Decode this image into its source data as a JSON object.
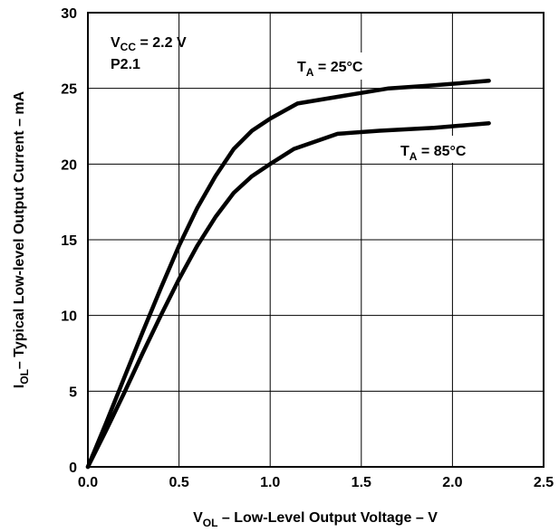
{
  "chart_data": {
    "type": "line",
    "xlabel": {
      "base": "V",
      "sub": "OL",
      "rest": " – Low-Level Output Voltage – V"
    },
    "ylabel": {
      "base": "I",
      "sub": "OL",
      "rest": "– Typical Low-level Output Current – mA"
    },
    "xlim": [
      0,
      2.5
    ],
    "ylim": [
      0,
      30
    ],
    "xticks": [
      "0.0",
      "0.5",
      "1.0",
      "1.5",
      "2.0",
      "2.5"
    ],
    "yticks": [
      "0",
      "5",
      "10",
      "15",
      "20",
      "25",
      "30"
    ],
    "grid": true,
    "annotations": {
      "vcc": {
        "base": "V",
        "sub": "CC",
        "rest": " = 2.2 V"
      },
      "port": "P2.1"
    },
    "series": [
      {
        "name": "TA = 25°C",
        "label": {
          "base": "T",
          "sub": "A",
          "rest": " = 25°C"
        },
        "x": [
          0.0,
          0.1,
          0.2,
          0.3,
          0.4,
          0.5,
          0.6,
          0.7,
          0.8,
          0.9,
          1.0,
          1.15,
          1.4,
          1.65,
          1.9,
          2.2
        ],
        "y": [
          0.0,
          2.9,
          5.9,
          8.9,
          11.8,
          14.6,
          17.1,
          19.2,
          21.0,
          22.2,
          23.0,
          24.0,
          24.5,
          25.0,
          25.2,
          25.5
        ]
      },
      {
        "name": "TA = 85°C",
        "label": {
          "base": "T",
          "sub": "A",
          "rest": " = 85°C"
        },
        "x": [
          0.0,
          0.1,
          0.2,
          0.3,
          0.4,
          0.5,
          0.6,
          0.7,
          0.8,
          0.9,
          1.0,
          1.13,
          1.37,
          1.6,
          1.9,
          2.2
        ],
        "y": [
          0.0,
          2.4,
          4.9,
          7.5,
          10.0,
          12.4,
          14.6,
          16.5,
          18.1,
          19.2,
          20.0,
          21.0,
          22.0,
          22.2,
          22.4,
          22.7
        ]
      }
    ]
  }
}
